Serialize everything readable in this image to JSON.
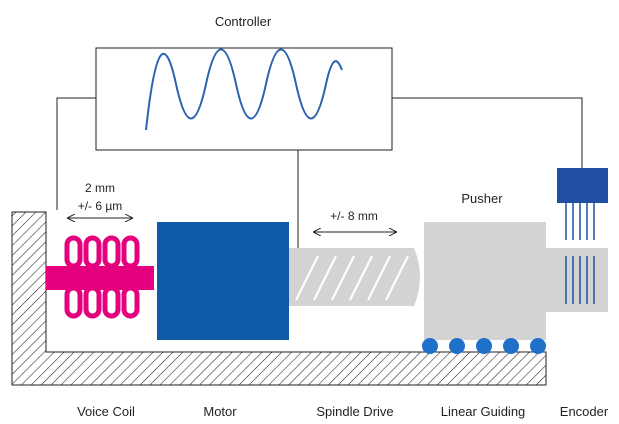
{
  "title": "Controller",
  "annotations": {
    "voice_coil_stroke": "2 mm",
    "voice_coil_precision": "+/- 6 µm",
    "spindle_stroke": "+/- 8 mm"
  },
  "components": {
    "pusher": "Pusher"
  },
  "bottom_labels": [
    "Voice Coil",
    "Motor",
    "Spindle Drive",
    "Linear Guiding",
    "Encoder"
  ],
  "colors": {
    "motor": "#0f5aa6",
    "encoder": "#1f4ea3",
    "voice_coil": "#e5007e",
    "signal_wave": "#2b63b0",
    "guide_balls": "#1e70c8",
    "spindle": "#d3d3d3",
    "pusher": "#d3d3d3",
    "frame_hatch": "#231f20"
  }
}
